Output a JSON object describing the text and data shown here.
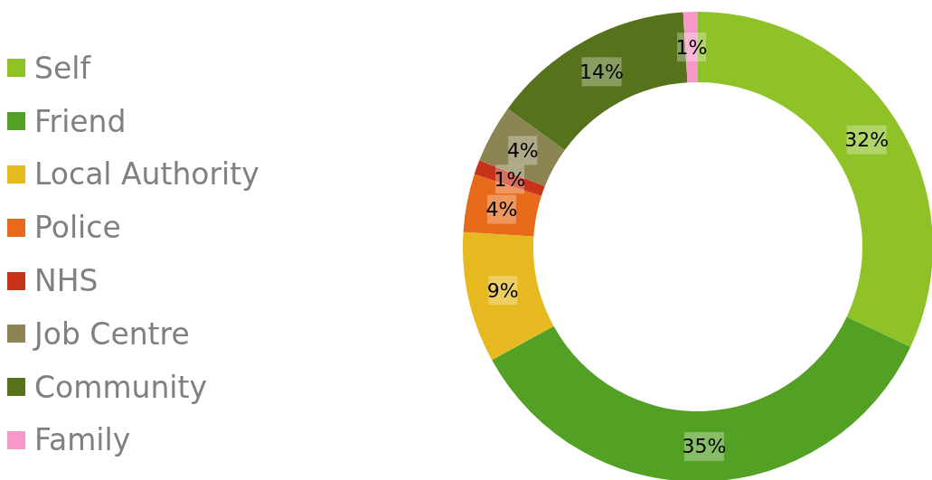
{
  "chart_data": {
    "type": "donut",
    "categories": [
      "Self",
      "Friend",
      "Local Authority",
      "Police",
      "NHS",
      "Job Centre",
      "Community",
      "Family"
    ],
    "values": [
      32,
      35,
      9,
      4,
      1,
      4,
      14,
      1
    ],
    "colors": [
      "#8fc227",
      "#52a124",
      "#e6b920",
      "#e66a1a",
      "#c8321a",
      "#8c8452",
      "#56731c",
      "#f799c8"
    ],
    "value_labels": [
      "32%",
      "35%",
      "9%",
      "4%",
      "1%",
      "4%",
      "14%",
      "1%"
    ],
    "legend": "left"
  }
}
